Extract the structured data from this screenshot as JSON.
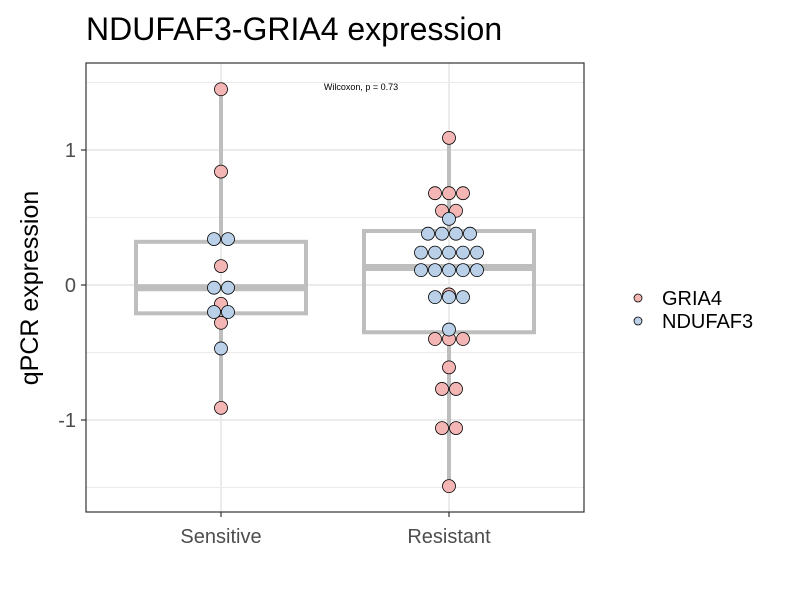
{
  "chart_data": {
    "type": "box+dot",
    "title": "NDUFAF3-GRIA4 expression",
    "ylabel": "qPCR expression",
    "xlabel": "",
    "categories": [
      "Sensitive",
      "Resistant"
    ],
    "ylim": [
      -1.55,
      1.6
    ],
    "yticks": [
      -1,
      0,
      1
    ],
    "ytick_labels": [
      "-1",
      "0",
      "1"
    ],
    "grid": true,
    "annotation": "Wilcoxon, p = 0.73",
    "legend": {
      "position": "right",
      "entries": [
        "GRIA4",
        "NDUFAF3"
      ]
    },
    "colors": {
      "GRIA4": "#f4b6b4",
      "NDUFAF3": "#b9d0e8",
      "box": "#bebebe",
      "grid": "#ebebeb"
    },
    "boxes": [
      {
        "category": "Sensitive",
        "q1": -0.21,
        "median": -0.02,
        "q3": 0.32,
        "whisker_low": -0.91,
        "whisker_high": 1.45
      },
      {
        "category": "Resistant",
        "q1": -0.35,
        "median": 0.13,
        "q3": 0.4,
        "whisker_low": -1.49,
        "whisker_high": 1.09
      }
    ],
    "series": [
      {
        "name": "GRIA4",
        "points": [
          {
            "category": "Sensitive",
            "values": [
              1.45,
              0.84,
              0.14,
              -0.14,
              -0.28,
              -0.91
            ]
          },
          {
            "category": "Resistant",
            "values": [
              1.09,
              0.68,
              0.68,
              0.68,
              0.55,
              0.55,
              -0.07,
              -0.4,
              -0.4,
              -0.4,
              -0.61,
              -0.77,
              -0.77,
              -1.06,
              -1.06,
              -1.49
            ]
          }
        ]
      },
      {
        "name": "NDUFAF3",
        "points": [
          {
            "category": "Sensitive",
            "values": [
              0.34,
              0.34,
              -0.02,
              -0.02,
              -0.2,
              -0.2,
              -0.47
            ]
          },
          {
            "category": "Resistant",
            "values": [
              0.49,
              0.38,
              0.38,
              0.38,
              0.38,
              0.24,
              0.24,
              0.24,
              0.24,
              0.24,
              0.11,
              0.11,
              0.11,
              0.11,
              0.11,
              -0.09,
              -0.09,
              -0.09,
              -0.33
            ]
          }
        ]
      }
    ]
  }
}
